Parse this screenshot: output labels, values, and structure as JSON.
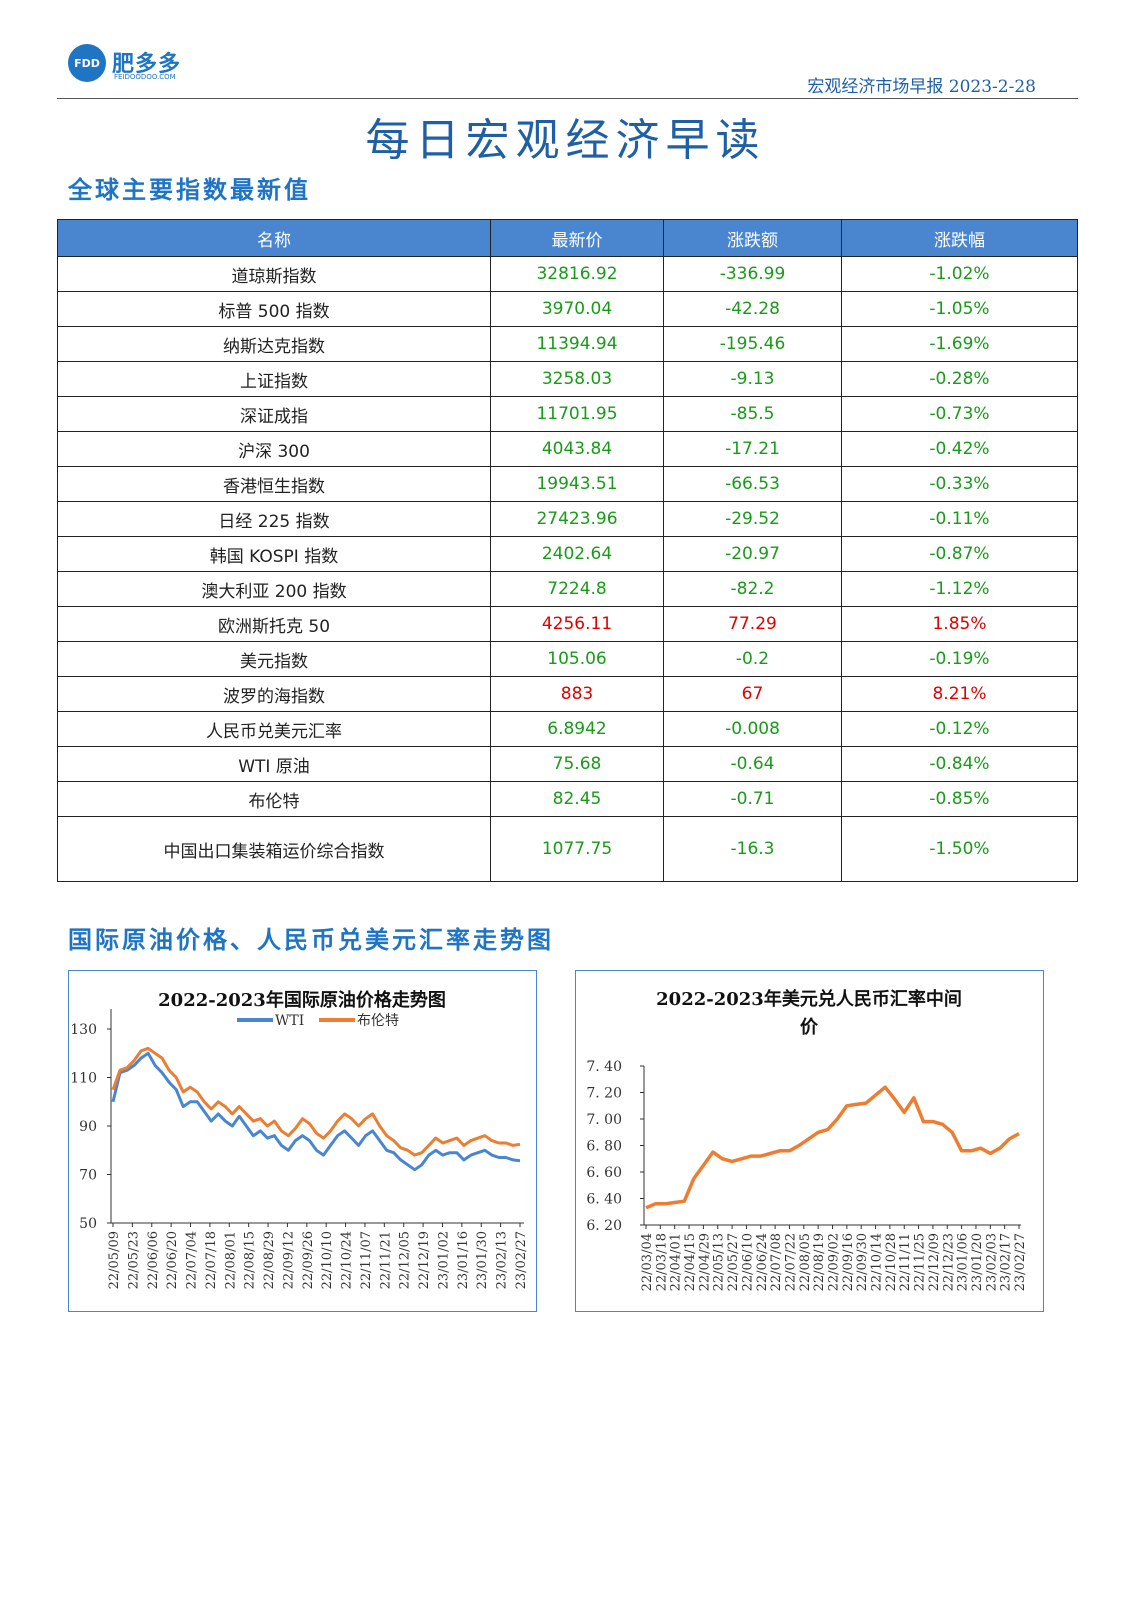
{
  "header": {
    "logo_mark": "FDD",
    "logo_cn": "肥多多",
    "logo_en": "FEIDOODOO.COM",
    "report": "宏观经济市场早报 2023-2-28"
  },
  "title": "每日宏观经济早读",
  "section1": "全球主要指数最新值",
  "table": {
    "headers": [
      "名称",
      "最新价",
      "涨跌额",
      "涨跌幅"
    ],
    "rows": [
      {
        "name": "道琼斯指数",
        "price": "32816.92",
        "change": "-336.99",
        "pct": "-1.02%",
        "dir": "down"
      },
      {
        "name": "标普 500 指数",
        "price": "3970.04",
        "change": "-42.28",
        "pct": "-1.05%",
        "dir": "down"
      },
      {
        "name": "纳斯达克指数",
        "price": "11394.94",
        "change": "-195.46",
        "pct": "-1.69%",
        "dir": "down"
      },
      {
        "name": "上证指数",
        "price": "3258.03",
        "change": "-9.13",
        "pct": "-0.28%",
        "dir": "down"
      },
      {
        "name": "深证成指",
        "price": "11701.95",
        "change": "-85.5",
        "pct": "-0.73%",
        "dir": "down"
      },
      {
        "name": "沪深 300",
        "price": "4043.84",
        "change": "-17.21",
        "pct": "-0.42%",
        "dir": "down"
      },
      {
        "name": "香港恒生指数",
        "price": "19943.51",
        "change": "-66.53",
        "pct": "-0.33%",
        "dir": "down"
      },
      {
        "name": "日经 225 指数",
        "price": "27423.96",
        "change": "-29.52",
        "pct": "-0.11%",
        "dir": "down"
      },
      {
        "name": "韩国 KOSPI 指数",
        "price": "2402.64",
        "change": "-20.97",
        "pct": "-0.87%",
        "dir": "down"
      },
      {
        "name": "澳大利亚 200 指数",
        "price": "7224.8",
        "change": "-82.2",
        "pct": "-1.12%",
        "dir": "down"
      },
      {
        "name": "欧洲斯托克 50",
        "price": "4256.11",
        "change": "77.29",
        "pct": "1.85%",
        "dir": "up"
      },
      {
        "name": "美元指数",
        "price": "105.06",
        "change": "-0.2",
        "pct": "-0.19%",
        "dir": "down"
      },
      {
        "name": "波罗的海指数",
        "price": "883",
        "change": "67",
        "pct": "8.21%",
        "dir": "up"
      },
      {
        "name": "人民币兑美元汇率",
        "price": "6.8942",
        "change": "-0.008",
        "pct": "-0.12%",
        "dir": "down"
      },
      {
        "name": "WTI 原油",
        "price": "75.68",
        "change": "-0.64",
        "pct": "-0.84%",
        "dir": "down"
      },
      {
        "name": "布伦特",
        "price": "82.45",
        "change": "-0.71",
        "pct": "-0.85%",
        "dir": "down"
      },
      {
        "name": "中国出口集装箱运价综合指数",
        "price": "1077.75",
        "change": "-16.3",
        "pct": "-1.50%",
        "dir": "down",
        "tall": true
      }
    ]
  },
  "section2": "国际原油价格、人民币兑美元汇率走势图",
  "chart_data": [
    {
      "type": "line",
      "title": "2022-2023年国际原油价格走势图",
      "ylim": [
        50,
        130
      ],
      "yticks": [
        50,
        70,
        90,
        110,
        130
      ],
      "xticks": [
        "22/05/09",
        "22/05/23",
        "22/06/06",
        "22/06/20",
        "22/07/04",
        "22/07/18",
        "22/08/01",
        "22/08/15",
        "22/08/29",
        "22/09/12",
        "22/09/26",
        "22/10/10",
        "22/10/24",
        "22/11/07",
        "22/11/21",
        "22/12/05",
        "22/12/19",
        "23/01/02",
        "23/01/16",
        "23/01/30",
        "23/02/13",
        "23/02/27"
      ],
      "colors": {
        "WTI": "#4a86cf",
        "布伦特": "#ed7d31"
      },
      "series": [
        {
          "name": "WTI",
          "values": [
            100,
            112,
            113,
            115,
            118,
            120,
            115,
            112,
            108,
            105,
            98,
            100,
            100,
            96,
            92,
            95,
            92,
            90,
            94,
            90,
            86,
            88,
            85,
            86,
            82,
            80,
            84,
            86,
            84,
            80,
            78,
            82,
            86,
            88,
            85,
            82,
            86,
            88,
            84,
            80,
            79,
            76,
            74,
            72,
            74,
            78,
            80,
            78,
            79,
            79,
            76,
            78,
            79,
            80,
            78,
            77,
            77,
            76,
            75.7
          ]
        },
        {
          "name": "布伦特",
          "values": [
            105,
            113,
            114,
            117,
            121,
            122,
            120,
            118,
            113,
            110,
            104,
            106,
            104,
            100,
            97,
            100,
            98,
            95,
            98,
            95,
            92,
            93,
            90,
            92,
            88,
            86,
            89,
            93,
            91,
            87,
            85,
            88,
            92,
            95,
            93,
            90,
            93,
            95,
            90,
            86,
            84,
            81,
            80,
            78,
            79,
            82,
            85,
            83,
            84,
            85,
            82,
            84,
            85,
            86,
            84,
            83,
            83,
            82,
            82.45
          ]
        }
      ]
    },
    {
      "type": "line",
      "title": "2022-2023年美元兑人民币汇率中间价",
      "ylim": [
        6.2,
        7.4
      ],
      "yticks": [
        "6.20",
        "6.40",
        "6.60",
        "6.80",
        "7.00",
        "7.20",
        "7.40"
      ],
      "xticks": [
        "22/03/04",
        "22/03/18",
        "22/04/01",
        "22/04/15",
        "22/04/29",
        "22/05/13",
        "22/05/27",
        "22/06/10",
        "22/06/24",
        "22/07/08",
        "22/07/22",
        "22/08/05",
        "22/08/19",
        "22/09/02",
        "22/09/16",
        "22/09/30",
        "22/10/14",
        "22/10/28",
        "22/11/11",
        "22/11/25",
        "22/12/09",
        "22/12/23",
        "23/01/06",
        "23/01/20",
        "23/02/03",
        "23/02/17",
        "23/02/27"
      ],
      "color": "#ed7d31",
      "series": [
        {
          "name": "",
          "values": [
            6.33,
            6.36,
            6.36,
            6.37,
            6.38,
            6.55,
            6.65,
            6.75,
            6.7,
            6.68,
            6.7,
            6.72,
            6.72,
            6.74,
            6.76,
            6.76,
            6.8,
            6.85,
            6.9,
            6.92,
            7.0,
            7.1,
            7.11,
            7.12,
            7.18,
            7.24,
            7.15,
            7.05,
            7.16,
            6.98,
            6.98,
            6.96,
            6.9,
            6.76,
            6.76,
            6.78,
            6.74,
            6.78,
            6.85,
            6.89
          ]
        }
      ]
    }
  ]
}
